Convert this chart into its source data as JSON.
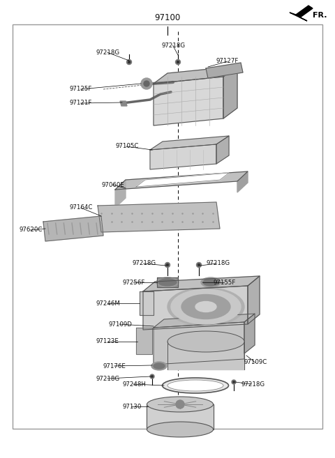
{
  "title": "97100",
  "fr_label": "FR.",
  "bg_color": "#ffffff",
  "border_color": "#999999",
  "text_color": "#111111",
  "label_fontsize": 6.2,
  "title_fontsize": 8.5,
  "fig_w": 4.8,
  "fig_h": 6.57,
  "dpi": 100,
  "xlim": [
    0,
    480
  ],
  "ylim": [
    0,
    657
  ]
}
